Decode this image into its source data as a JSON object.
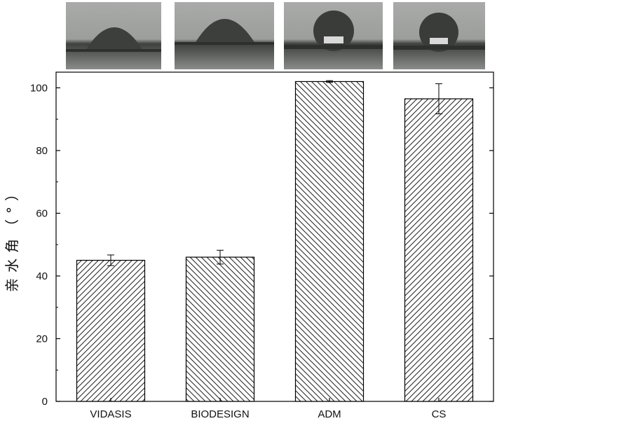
{
  "chart_data": {
    "type": "bar",
    "categories": [
      "VIDASIS",
      "BIODESIGN",
      "ADM",
      "CS"
    ],
    "values": [
      45.0,
      46.0,
      102.0,
      96.5
    ],
    "errors": [
      1.7,
      2.2,
      0.3,
      4.8
    ],
    "title": "",
    "xlabel": "",
    "ylabel": "亲水角（°）",
    "ylim": [
      0,
      105
    ],
    "yticks": [
      0,
      20,
      40,
      60,
      80,
      100
    ],
    "grid": false,
    "bar_pattern": [
      "hatch-forward",
      "hatch-back",
      "hatch-back",
      "hatch-forward"
    ],
    "inset_images": [
      "water-droplet-photo",
      "water-droplet-photo",
      "water-droplet-photo",
      "water-droplet-photo"
    ]
  }
}
